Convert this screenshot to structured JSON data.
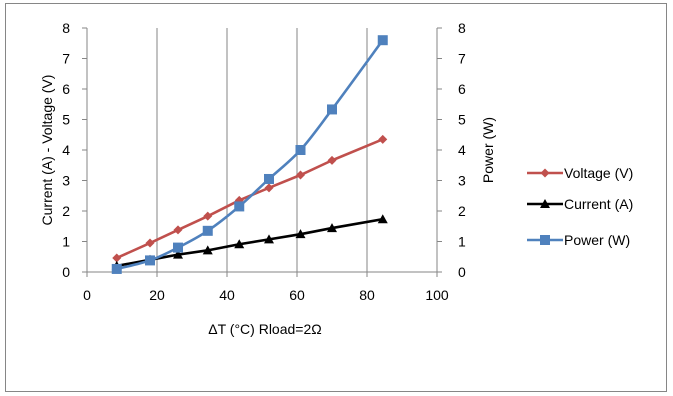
{
  "chart_data": {
    "type": "scatter",
    "title": "",
    "xlabel": "ΔT (°C) Rload=2Ω",
    "ylabel": "Current (A) - Voltage (V)",
    "y2label": "Power (W)",
    "xlim": [
      0,
      100
    ],
    "ylim": [
      0,
      8
    ],
    "y2lim": [
      0,
      8
    ],
    "x_ticks": [
      0,
      20,
      40,
      60,
      80,
      100
    ],
    "y_ticks": [
      0,
      1,
      2,
      3,
      4,
      5,
      6,
      7,
      8
    ],
    "y2_ticks": [
      0,
      1,
      2,
      3,
      4,
      5,
      6,
      7,
      8
    ],
    "grid": "vertical",
    "legend_position": "right",
    "series": [
      {
        "name": "Voltage (V)",
        "axis": "left",
        "color": "#c0504d",
        "marker": "diamond",
        "x": [
          8.5,
          18,
          26,
          34.5,
          43.5,
          52,
          61,
          70,
          84.5
        ],
        "y": [
          0.46,
          0.95,
          1.38,
          1.83,
          2.35,
          2.76,
          3.18,
          3.66,
          4.35
        ]
      },
      {
        "name": "Current (A)",
        "axis": "left",
        "color": "#000000",
        "marker": "triangle",
        "x": [
          8.5,
          18,
          26,
          34.5,
          43.5,
          52,
          61,
          70,
          84.5
        ],
        "y": [
          0.2,
          0.4,
          0.57,
          0.71,
          0.91,
          1.07,
          1.24,
          1.44,
          1.73
        ]
      },
      {
        "name": "Power (W)",
        "axis": "right",
        "color": "#4f81bd",
        "marker": "square",
        "x": [
          8.5,
          18,
          26,
          34.5,
          43.5,
          52,
          61,
          70,
          84.5
        ],
        "y": [
          0.1,
          0.38,
          0.8,
          1.35,
          2.15,
          3.05,
          4.0,
          5.33,
          7.6
        ]
      }
    ]
  }
}
